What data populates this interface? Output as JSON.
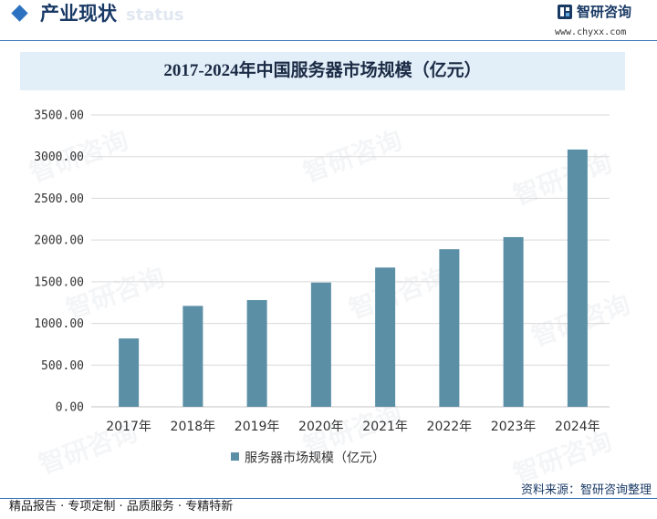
{
  "header": {
    "title": "产业现状",
    "watermark_text": "status",
    "logo_text": "智研咨询",
    "url": "www.chyxx.com"
  },
  "colors": {
    "accent": "#2d72c0",
    "heading": "#1a3a66",
    "bar": "#5b8fa6",
    "title_bg": "#e2eef8",
    "grid": "#d9d9d9"
  },
  "icons": {
    "section": "diamond-icon",
    "logo": "logo-icon"
  },
  "watermark": "智研咨询",
  "chart_data": {
    "type": "bar",
    "title": "2017-2024年中国服务器市场规模（亿元）",
    "categories": [
      "2017年",
      "2018年",
      "2019年",
      "2020年",
      "2021年",
      "2022年",
      "2023年",
      "2024年"
    ],
    "series": [
      {
        "name": "服务器市场规模（亿元）",
        "values": [
          820,
          1210,
          1280,
          1490,
          1670,
          1890,
          2035,
          3085
        ]
      }
    ],
    "ylim": [
      0,
      3500
    ],
    "ytick_labels": [
      "0.00",
      "500.00",
      "1000.00",
      "1500.00",
      "2000.00",
      "2500.00",
      "3000.00",
      "3500.00"
    ],
    "grid": true,
    "legend": "bottom-center"
  },
  "footer": {
    "source": "资料来源：智研咨询整理",
    "tagline": "精品报告 · 专项定制 · 品质服务 · 专精特新"
  }
}
